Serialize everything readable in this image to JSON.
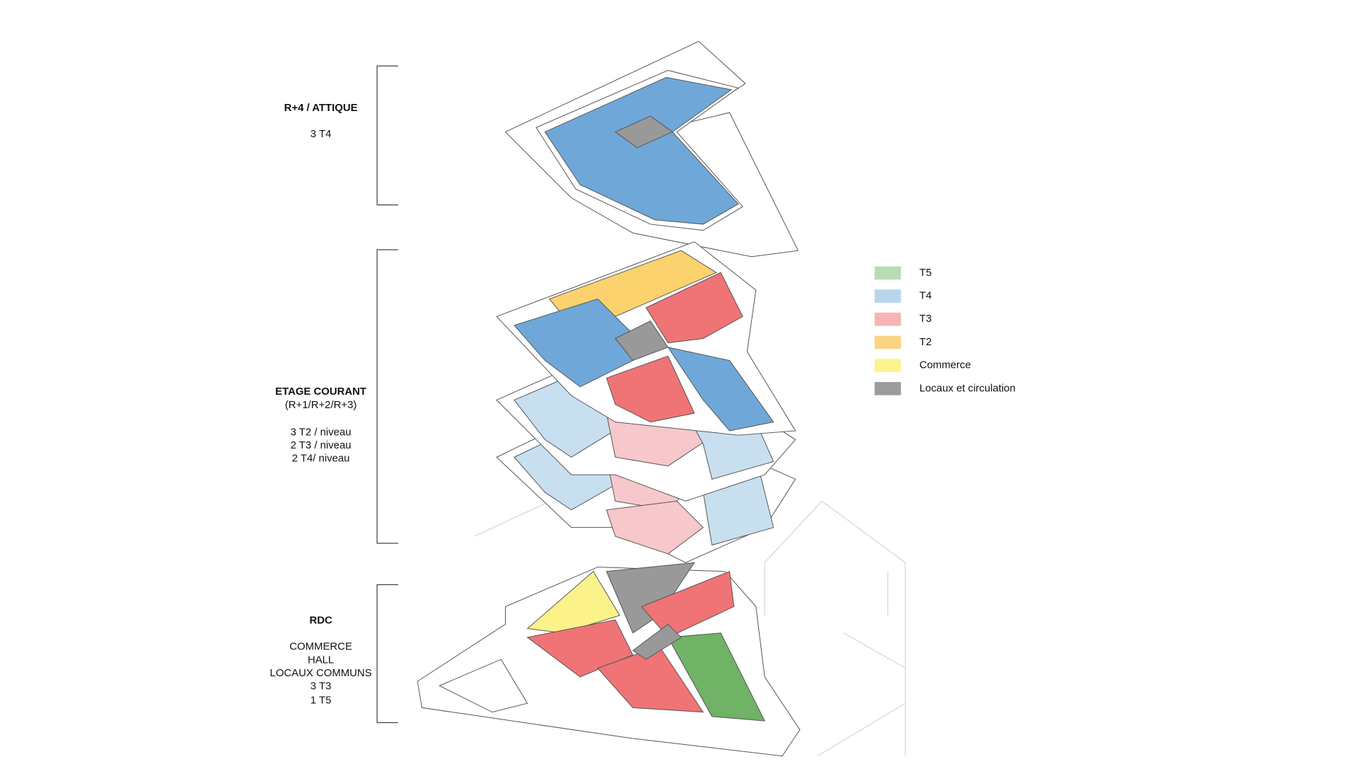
{
  "sections": [
    {
      "title": "R+4 / ATTIQUE",
      "lines": [
        "3 T4"
      ]
    },
    {
      "title": "ETAGE COURANT",
      "lines": [
        "(R+1/R+2/R+3)",
        "3 T2 / niveau",
        "2 T3 / niveau",
        "2 T4/ niveau"
      ]
    },
    {
      "title": "RDC",
      "lines": [
        "COMMERCE",
        "HALL",
        "LOCAUX COMMUNS",
        "3 T3",
        "1 T5"
      ]
    }
  ],
  "legend": [
    {
      "label": "T5",
      "color": "#b6dcb1"
    },
    {
      "label": "T4",
      "color": "#b7d6ee"
    },
    {
      "label": "T3",
      "color": "#f6b4b7"
    },
    {
      "label": "T2",
      "color": "#fbd582"
    },
    {
      "label": "Commerce",
      "color": "#fcf48d"
    },
    {
      "label": "Locaux et circulation",
      "color": "#9c9c9c"
    }
  ]
}
